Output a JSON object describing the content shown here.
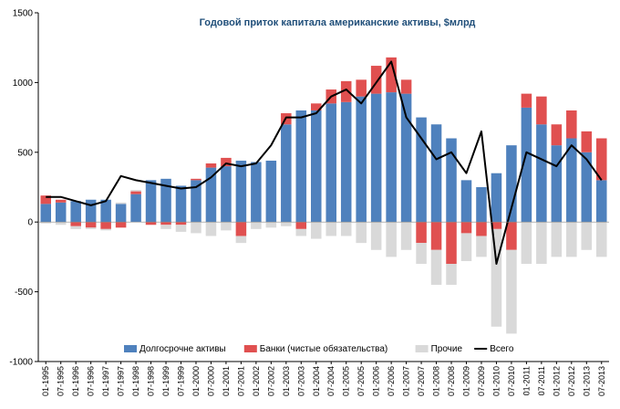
{
  "chart_data": {
    "type": "bar",
    "title": "Годовой приток капитала американские активы, $млрд",
    "ylim": [
      -1000,
      1500
    ],
    "yticks": [
      -1000,
      -500,
      0,
      500,
      1000,
      1500
    ],
    "grid": false,
    "legend_position": "bottom",
    "x_tick_labels": [
      "01-1995",
      "07-1995",
      "01-1996",
      "07-1996",
      "01-1997",
      "07-1997",
      "01-1998",
      "07-1998",
      "01-1999",
      "07-1999",
      "01-2000",
      "07-2000",
      "01-2001",
      "07-2001",
      "01-2002",
      "07-2002",
      "01-2003",
      "07-2003",
      "01-2004",
      "07-2004",
      "01-2005",
      "07-2005",
      "01-2006",
      "07-2006",
      "01-2007",
      "07-2007",
      "01-2008",
      "07-2008",
      "01-2009",
      "07-2009",
      "01-2010",
      "07-2010",
      "01-2011",
      "07-2011",
      "01-2012",
      "07-2012",
      "01-2013",
      "07-2013"
    ],
    "series": [
      {
        "name": "Долгосрочне активы",
        "kind": "bar",
        "color": "#4f81bd",
        "values": [
          130,
          140,
          150,
          160,
          160,
          130,
          200,
          300,
          310,
          260,
          300,
          390,
          400,
          440,
          430,
          440,
          700,
          800,
          800,
          850,
          860,
          900,
          920,
          930,
          920,
          750,
          700,
          600,
          300,
          250,
          350,
          550,
          820,
          700,
          550,
          600,
          500,
          300
        ]
      },
      {
        "name": "Банки (чистые обязательства)",
        "kind": "bar",
        "color": "#e05050",
        "values": [
          60,
          20,
          -30,
          -40,
          -50,
          -40,
          20,
          -20,
          -20,
          -20,
          10,
          30,
          60,
          -100,
          0,
          0,
          80,
          -50,
          50,
          100,
          150,
          120,
          200,
          250,
          100,
          -150,
          -200,
          -300,
          -80,
          -100,
          -50,
          -200,
          100,
          200,
          150,
          200,
          150,
          300
        ]
      },
      {
        "name": "Прочие",
        "kind": "bar",
        "color": "#d9d9d9",
        "values": [
          -10,
          -20,
          -20,
          -10,
          -10,
          10,
          10,
          0,
          -30,
          -50,
          -80,
          -100,
          -60,
          -50,
          -50,
          -40,
          -30,
          -50,
          -120,
          -100,
          -100,
          -150,
          -200,
          -250,
          -200,
          -150,
          -250,
          -150,
          -200,
          -150,
          -700,
          -600,
          -300,
          -300,
          -250,
          -250,
          -200,
          -250
        ]
      },
      {
        "name": "Всего",
        "kind": "line",
        "color": "#000000",
        "values": [
          180,
          180,
          150,
          120,
          150,
          330,
          300,
          280,
          260,
          240,
          250,
          320,
          420,
          400,
          420,
          550,
          750,
          750,
          780,
          900,
          950,
          850,
          1000,
          1150,
          750,
          600,
          450,
          500,
          350,
          650,
          -300,
          100,
          500,
          450,
          400,
          550,
          450,
          300
        ]
      }
    ]
  }
}
